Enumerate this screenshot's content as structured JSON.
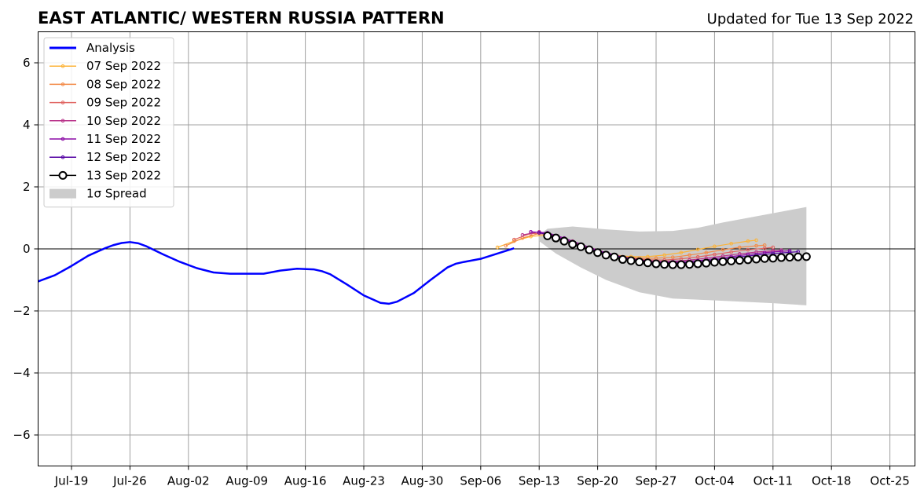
{
  "chart_data": {
    "type": "line",
    "title": "EAST ATLANTIC/ WESTERN RUSSIA PATTERN",
    "subtitle": "Updated for Tue 13 Sep 2022",
    "xlabel": "",
    "ylabel": "",
    "year": 2022,
    "x_ticks": [
      "Jul-19",
      "Jul-26",
      "Aug-02",
      "Aug-09",
      "Aug-16",
      "Aug-23",
      "Aug-30",
      "Sep-06",
      "Sep-13",
      "Sep-20",
      "Sep-27",
      "Oct-04",
      "Oct-11",
      "Oct-18",
      "Oct-25"
    ],
    "y_ticks": [
      "6",
      "4",
      "2",
      "0",
      "−2",
      "−4",
      "−6"
    ],
    "xlim": [
      "2022-07-15",
      "2022-10-28"
    ],
    "ylim": [
      -7,
      7
    ],
    "grid": true,
    "legend_position": "upper-left",
    "analysis": {
      "name": "Analysis",
      "color": "#0000ff",
      "points": [
        [
          "2022-07-15",
          -1.05
        ],
        [
          "2022-07-17",
          -0.85
        ],
        [
          "2022-07-19",
          -0.55
        ],
        [
          "2022-07-21",
          -0.22
        ],
        [
          "2022-07-23",
          0.02
        ],
        [
          "2022-07-24",
          0.12
        ],
        [
          "2022-07-25",
          0.19
        ],
        [
          "2022-07-26",
          0.22
        ],
        [
          "2022-07-27",
          0.18
        ],
        [
          "2022-07-28",
          0.08
        ],
        [
          "2022-07-30",
          -0.18
        ],
        [
          "2022-08-01",
          -0.42
        ],
        [
          "2022-08-03",
          -0.62
        ],
        [
          "2022-08-05",
          -0.76
        ],
        [
          "2022-08-07",
          -0.8
        ],
        [
          "2022-08-09",
          -0.8
        ],
        [
          "2022-08-11",
          -0.8
        ],
        [
          "2022-08-13",
          -0.7
        ],
        [
          "2022-08-15",
          -0.64
        ],
        [
          "2022-08-17",
          -0.66
        ],
        [
          "2022-08-18",
          -0.72
        ],
        [
          "2022-08-19",
          -0.82
        ],
        [
          "2022-08-21",
          -1.15
        ],
        [
          "2022-08-23",
          -1.5
        ],
        [
          "2022-08-25",
          -1.74
        ],
        [
          "2022-08-26",
          -1.77
        ],
        [
          "2022-08-27",
          -1.7
        ],
        [
          "2022-08-29",
          -1.42
        ],
        [
          "2022-08-31",
          -1.0
        ],
        [
          "2022-09-02",
          -0.6
        ],
        [
          "2022-09-03",
          -0.48
        ],
        [
          "2022-09-04",
          -0.42
        ],
        [
          "2022-09-06",
          -0.32
        ],
        [
          "2022-09-08",
          -0.15
        ],
        [
          "2022-09-10",
          0.02
        ]
      ]
    },
    "forecasts": [
      {
        "name": "07 Sep 2022",
        "color": "#fcb338",
        "points": [
          [
            "2022-09-08",
            0.05
          ],
          [
            "2022-09-10",
            0.25
          ],
          [
            "2022-09-12",
            0.4
          ],
          [
            "2022-09-14",
            0.45
          ],
          [
            "2022-09-16",
            0.3
          ],
          [
            "2022-09-18",
            0.1
          ],
          [
            "2022-09-20",
            -0.08
          ],
          [
            "2022-09-22",
            -0.2
          ],
          [
            "2022-09-24",
            -0.25
          ],
          [
            "2022-09-26",
            -0.25
          ],
          [
            "2022-09-28",
            -0.2
          ],
          [
            "2022-09-30",
            -0.12
          ],
          [
            "2022-10-02",
            -0.02
          ],
          [
            "2022-10-04",
            0.08
          ],
          [
            "2022-10-06",
            0.17
          ],
          [
            "2022-10-08",
            0.25
          ],
          [
            "2022-10-09",
            0.28
          ]
        ]
      },
      {
        "name": "08 Sep 2022",
        "color": "#f38a47",
        "points": [
          [
            "2022-09-09",
            0.1
          ],
          [
            "2022-09-11",
            0.35
          ],
          [
            "2022-09-13",
            0.5
          ],
          [
            "2022-09-15",
            0.4
          ],
          [
            "2022-09-17",
            0.2
          ],
          [
            "2022-09-19",
            0.0
          ],
          [
            "2022-09-21",
            -0.15
          ],
          [
            "2022-09-23",
            -0.25
          ],
          [
            "2022-09-25",
            -0.3
          ],
          [
            "2022-09-27",
            -0.3
          ],
          [
            "2022-09-29",
            -0.27
          ],
          [
            "2022-10-01",
            -0.2
          ],
          [
            "2022-10-03",
            -0.12
          ],
          [
            "2022-10-05",
            -0.03
          ],
          [
            "2022-10-07",
            0.05
          ],
          [
            "2022-10-09",
            0.1
          ],
          [
            "2022-10-10",
            0.12
          ]
        ]
      },
      {
        "name": "09 Sep 2022",
        "color": "#e06461",
        "points": [
          [
            "2022-09-10",
            0.3
          ],
          [
            "2022-09-12",
            0.5
          ],
          [
            "2022-09-14",
            0.48
          ],
          [
            "2022-09-16",
            0.32
          ],
          [
            "2022-09-18",
            0.12
          ],
          [
            "2022-09-20",
            -0.06
          ],
          [
            "2022-09-22",
            -0.2
          ],
          [
            "2022-09-24",
            -0.3
          ],
          [
            "2022-09-26",
            -0.35
          ],
          [
            "2022-09-28",
            -0.36
          ],
          [
            "2022-09-30",
            -0.32
          ],
          [
            "2022-10-02",
            -0.26
          ],
          [
            "2022-10-04",
            -0.18
          ],
          [
            "2022-10-06",
            -0.1
          ],
          [
            "2022-10-08",
            -0.03
          ],
          [
            "2022-10-10",
            0.02
          ],
          [
            "2022-10-11",
            0.05
          ]
        ]
      },
      {
        "name": "10 Sep 2022",
        "color": "#b83289",
        "points": [
          [
            "2022-09-11",
            0.45
          ],
          [
            "2022-09-13",
            0.55
          ],
          [
            "2022-09-15",
            0.42
          ],
          [
            "2022-09-17",
            0.25
          ],
          [
            "2022-09-19",
            0.05
          ],
          [
            "2022-09-21",
            -0.12
          ],
          [
            "2022-09-23",
            -0.26
          ],
          [
            "2022-09-25",
            -0.35
          ],
          [
            "2022-09-27",
            -0.4
          ],
          [
            "2022-09-29",
            -0.4
          ],
          [
            "2022-10-01",
            -0.36
          ],
          [
            "2022-10-03",
            -0.3
          ],
          [
            "2022-10-05",
            -0.23
          ],
          [
            "2022-10-07",
            -0.16
          ],
          [
            "2022-10-09",
            -0.1
          ],
          [
            "2022-10-11",
            -0.06
          ],
          [
            "2022-10-12",
            -0.04
          ]
        ]
      },
      {
        "name": "11 Sep 2022",
        "color": "#8b0aa5",
        "points": [
          [
            "2022-09-12",
            0.55
          ],
          [
            "2022-09-14",
            0.52
          ],
          [
            "2022-09-16",
            0.35
          ],
          [
            "2022-09-18",
            0.15
          ],
          [
            "2022-09-20",
            -0.05
          ],
          [
            "2022-09-22",
            -0.2
          ],
          [
            "2022-09-24",
            -0.32
          ],
          [
            "2022-09-26",
            -0.4
          ],
          [
            "2022-09-28",
            -0.43
          ],
          [
            "2022-09-30",
            -0.42
          ],
          [
            "2022-10-02",
            -0.38
          ],
          [
            "2022-10-04",
            -0.32
          ],
          [
            "2022-10-06",
            -0.25
          ],
          [
            "2022-10-08",
            -0.18
          ],
          [
            "2022-10-10",
            -0.12
          ],
          [
            "2022-10-12",
            -0.08
          ],
          [
            "2022-10-13",
            -0.06
          ]
        ]
      },
      {
        "name": "12 Sep 2022",
        "color": "#5302a3",
        "points": [
          [
            "2022-09-13",
            0.52
          ],
          [
            "2022-09-15",
            0.4
          ],
          [
            "2022-09-17",
            0.2
          ],
          [
            "2022-09-19",
            0.0
          ],
          [
            "2022-09-21",
            -0.15
          ],
          [
            "2022-09-23",
            -0.28
          ],
          [
            "2022-09-25",
            -0.38
          ],
          [
            "2022-09-27",
            -0.44
          ],
          [
            "2022-09-29",
            -0.46
          ],
          [
            "2022-10-01",
            -0.44
          ],
          [
            "2022-10-03",
            -0.39
          ],
          [
            "2022-10-05",
            -0.33
          ],
          [
            "2022-10-07",
            -0.26
          ],
          [
            "2022-10-09",
            -0.2
          ],
          [
            "2022-10-11",
            -0.15
          ],
          [
            "2022-10-13",
            -0.11
          ],
          [
            "2022-10-14",
            -0.09
          ]
        ]
      },
      {
        "name": "13 Sep 2022",
        "color": "#000000",
        "points": [
          [
            "2022-09-14",
            0.42
          ],
          [
            "2022-09-15",
            0.35
          ],
          [
            "2022-09-16",
            0.25
          ],
          [
            "2022-09-17",
            0.15
          ],
          [
            "2022-09-18",
            0.07
          ],
          [
            "2022-09-19",
            -0.03
          ],
          [
            "2022-09-20",
            -0.12
          ],
          [
            "2022-09-21",
            -0.2
          ],
          [
            "2022-09-22",
            -0.26
          ],
          [
            "2022-09-23",
            -0.34
          ],
          [
            "2022-09-24",
            -0.38
          ],
          [
            "2022-09-25",
            -0.42
          ],
          [
            "2022-09-26",
            -0.45
          ],
          [
            "2022-09-27",
            -0.48
          ],
          [
            "2022-09-28",
            -0.5
          ],
          [
            "2022-09-29",
            -0.51
          ],
          [
            "2022-09-30",
            -0.51
          ],
          [
            "2022-10-01",
            -0.5
          ],
          [
            "2022-10-02",
            -0.48
          ],
          [
            "2022-10-03",
            -0.46
          ],
          [
            "2022-10-04",
            -0.43
          ],
          [
            "2022-10-05",
            -0.41
          ],
          [
            "2022-10-06",
            -0.39
          ],
          [
            "2022-10-07",
            -0.37
          ],
          [
            "2022-10-08",
            -0.35
          ],
          [
            "2022-10-09",
            -0.33
          ],
          [
            "2022-10-10",
            -0.31
          ],
          [
            "2022-10-11",
            -0.3
          ],
          [
            "2022-10-12",
            -0.28
          ],
          [
            "2022-10-13",
            -0.27
          ],
          [
            "2022-10-14",
            -0.26
          ],
          [
            "2022-10-15",
            -0.25
          ]
        ]
      }
    ],
    "spread": {
      "name": "1σ Spread",
      "color": "#cccccc",
      "upper": [
        [
          "2022-09-13",
          0.45
        ],
        [
          "2022-09-14",
          0.65
        ],
        [
          "2022-09-17",
          0.72
        ],
        [
          "2022-09-21",
          0.63
        ],
        [
          "2022-09-25",
          0.56
        ],
        [
          "2022-09-29",
          0.58
        ],
        [
          "2022-10-02",
          0.68
        ],
        [
          "2022-10-05",
          0.85
        ],
        [
          "2022-10-09",
          1.05
        ],
        [
          "2022-10-13",
          1.25
        ],
        [
          "2022-10-15",
          1.35
        ]
      ],
      "lower": [
        [
          "2022-09-13",
          0.25
        ],
        [
          "2022-09-15",
          -0.15
        ],
        [
          "2022-09-18",
          -0.6
        ],
        [
          "2022-09-21",
          -1.0
        ],
        [
          "2022-09-25",
          -1.4
        ],
        [
          "2022-09-29",
          -1.6
        ],
        [
          "2022-10-03",
          -1.65
        ],
        [
          "2022-10-07",
          -1.7
        ],
        [
          "2022-10-11",
          -1.75
        ],
        [
          "2022-10-15",
          -1.82
        ]
      ]
    }
  }
}
